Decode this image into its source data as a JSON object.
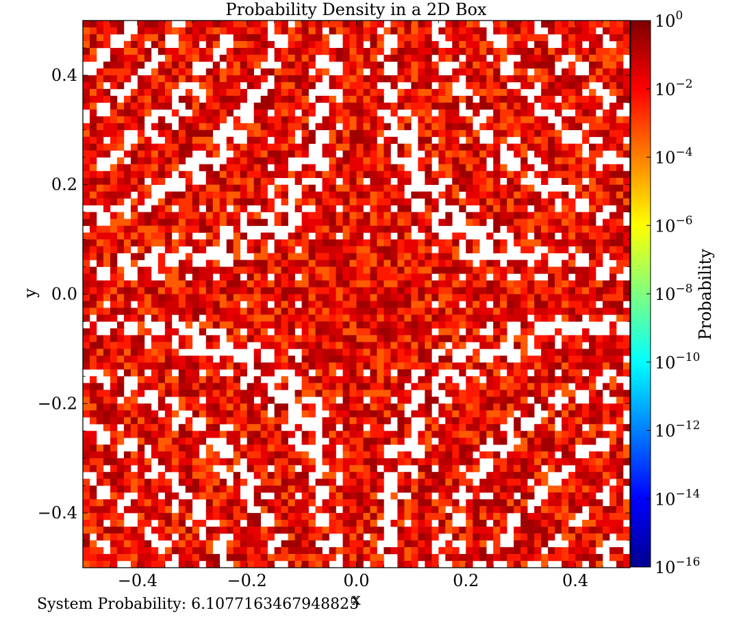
{
  "chart_data": {
    "type": "heatmap",
    "title": "Probability Density in a 2D Box",
    "xlabel": "x",
    "ylabel": "y",
    "xlim": [
      -0.5,
      0.5
    ],
    "ylim": [
      -0.5,
      0.5
    ],
    "x_ticks": [
      -0.4,
      -0.2,
      0.0,
      0.2,
      0.4
    ],
    "x_tick_labels": [
      "−0.4",
      "−0.2",
      "0.0",
      "0.2",
      "0.4"
    ],
    "y_ticks": [
      -0.4,
      -0.2,
      0.0,
      0.2,
      0.4
    ],
    "y_tick_labels": [
      "−0.4",
      "−0.2",
      "0.0",
      "0.2",
      "0.4"
    ],
    "grid": false,
    "grid_size": [
      80,
      80
    ],
    "colorbar": {
      "label": "Probability",
      "scale": "log",
      "range": [
        1e-16,
        1
      ],
      "colormap": "jet",
      "ticks": [
        {
          "exponent": -16,
          "base": "10",
          "exp_label": "−16"
        },
        {
          "exponent": -14,
          "base": "10",
          "exp_label": "−14"
        },
        {
          "exponent": -12,
          "base": "10",
          "exp_label": "−12"
        },
        {
          "exponent": -10,
          "base": "10",
          "exp_label": "−10"
        },
        {
          "exponent": -8,
          "base": "10",
          "exp_label": "−8"
        },
        {
          "exponent": -6,
          "base": "10",
          "exp_label": "−6"
        },
        {
          "exponent": -4,
          "base": "10",
          "exp_label": "−4"
        },
        {
          "exponent": -2,
          "base": "10",
          "exp_label": "−2"
        },
        {
          "exponent": 0,
          "base": "10",
          "exp_label": "0"
        }
      ]
    }
  },
  "footer": {
    "text": "System Probability: 6.1077163467948825"
  }
}
